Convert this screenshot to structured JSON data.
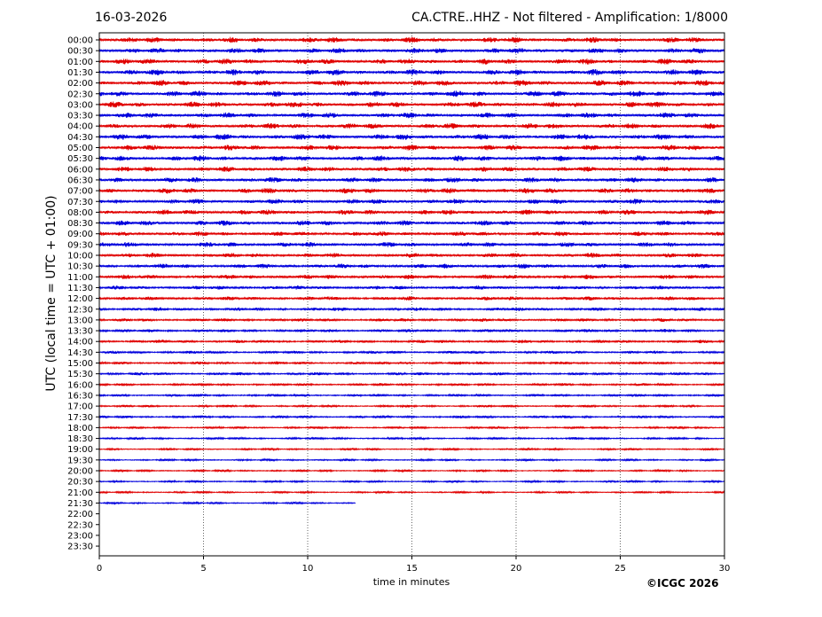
{
  "header": {
    "date": "16-03-2026",
    "title": "CA.CTRE..HHZ - Not filtered - Amplification: 1/8000"
  },
  "footer": {
    "copyright": "©ICGC 2026"
  },
  "colors": {
    "trace_odd": "#e00000",
    "trace_even": "#0000dd",
    "axes": "#000000",
    "grid": "#000000"
  },
  "chart_data": {
    "type": "line",
    "title": "CA.CTRE..HHZ - Not filtered - Amplification: 1/8000",
    "xlabel": "time in minutes",
    "ylabel": "UTC (local time = UTC + 01:00)",
    "xlim": [
      0,
      30
    ],
    "xticks": [
      "0",
      "5",
      "10",
      "15",
      "20",
      "25",
      "30"
    ],
    "grid": "vertical dotted lines at x ticks",
    "row_labels": [
      "00:00",
      "00:30",
      "01:00",
      "01:30",
      "02:00",
      "02:30",
      "03:00",
      "03:30",
      "04:00",
      "04:30",
      "05:00",
      "05:30",
      "06:00",
      "06:30",
      "07:00",
      "07:30",
      "08:00",
      "08:30",
      "09:00",
      "09:30",
      "10:00",
      "10:30",
      "11:00",
      "11:30",
      "12:00",
      "12:30",
      "13:00",
      "13:30",
      "14:00",
      "14:30",
      "15:00",
      "15:30",
      "16:00",
      "16:30",
      "17:00",
      "17:30",
      "18:00",
      "18:30",
      "19:00",
      "19:30",
      "20:00",
      "20:30",
      "21:00",
      "21:30",
      "22:00",
      "22:30",
      "23:00",
      "23:30"
    ],
    "series": [
      {
        "row": "00:00",
        "color": "red",
        "duration_min": 30,
        "level": 0.9
      },
      {
        "row": "00:30",
        "color": "blue",
        "duration_min": 30,
        "level": 0.9
      },
      {
        "row": "01:00",
        "color": "red",
        "duration_min": 30,
        "level": 0.95
      },
      {
        "row": "01:30",
        "color": "blue",
        "duration_min": 30,
        "level": 0.95
      },
      {
        "row": "02:00",
        "color": "red",
        "duration_min": 30,
        "level": 0.95
      },
      {
        "row": "02:30",
        "color": "blue",
        "duration_min": 30,
        "level": 0.95
      },
      {
        "row": "03:00",
        "color": "red",
        "duration_min": 30,
        "level": 0.95
      },
      {
        "row": "03:30",
        "color": "blue",
        "duration_min": 30,
        "level": 0.9
      },
      {
        "row": "04:00",
        "color": "red",
        "duration_min": 30,
        "level": 0.9
      },
      {
        "row": "04:30",
        "color": "blue",
        "duration_min": 30,
        "level": 0.95
      },
      {
        "row": "05:00",
        "color": "red",
        "duration_min": 30,
        "level": 0.9
      },
      {
        "row": "05:30",
        "color": "blue",
        "duration_min": 30,
        "level": 0.9
      },
      {
        "row": "06:00",
        "color": "red",
        "duration_min": 30,
        "level": 0.85
      },
      {
        "row": "06:30",
        "color": "blue",
        "duration_min": 30,
        "level": 0.85
      },
      {
        "row": "07:00",
        "color": "red",
        "duration_min": 30,
        "level": 0.9
      },
      {
        "row": "07:30",
        "color": "blue",
        "duration_min": 30,
        "level": 0.8
      },
      {
        "row": "08:00",
        "color": "red",
        "duration_min": 30,
        "level": 0.85
      },
      {
        "row": "08:30",
        "color": "blue",
        "duration_min": 30,
        "level": 0.85
      },
      {
        "row": "09:00",
        "color": "red",
        "duration_min": 30,
        "level": 0.75
      },
      {
        "row": "09:30",
        "color": "blue",
        "duration_min": 30,
        "level": 0.8
      },
      {
        "row": "10:00",
        "color": "red",
        "duration_min": 30,
        "level": 0.75
      },
      {
        "row": "10:30",
        "color": "blue",
        "duration_min": 30,
        "level": 0.75
      },
      {
        "row": "11:00",
        "color": "red",
        "duration_min": 30,
        "level": 0.75
      },
      {
        "row": "11:30",
        "color": "blue",
        "duration_min": 30,
        "level": 0.65
      },
      {
        "row": "12:00",
        "color": "red",
        "duration_min": 30,
        "level": 0.65
      },
      {
        "row": "12:30",
        "color": "blue",
        "duration_min": 30,
        "level": 0.6
      },
      {
        "row": "13:00",
        "color": "red",
        "duration_min": 30,
        "level": 0.55
      },
      {
        "row": "13:30",
        "color": "blue",
        "duration_min": 30,
        "level": 0.55
      },
      {
        "row": "14:00",
        "color": "red",
        "duration_min": 30,
        "level": 0.55
      },
      {
        "row": "14:30",
        "color": "blue",
        "duration_min": 30,
        "level": 0.5
      },
      {
        "row": "15:00",
        "color": "red",
        "duration_min": 30,
        "level": 0.5
      },
      {
        "row": "15:30",
        "color": "blue",
        "duration_min": 30,
        "level": 0.5
      },
      {
        "row": "16:00",
        "color": "red",
        "duration_min": 30,
        "level": 0.45
      },
      {
        "row": "16:30",
        "color": "blue",
        "duration_min": 30,
        "level": 0.45
      },
      {
        "row": "17:00",
        "color": "red",
        "duration_min": 30,
        "level": 0.4
      },
      {
        "row": "17:30",
        "color": "blue",
        "duration_min": 30,
        "level": 0.45
      },
      {
        "row": "18:00",
        "color": "red",
        "duration_min": 30,
        "level": 0.4
      },
      {
        "row": "18:30",
        "color": "blue",
        "duration_min": 30,
        "level": 0.4
      },
      {
        "row": "19:00",
        "color": "red",
        "duration_min": 30,
        "level": 0.35
      },
      {
        "row": "19:30",
        "color": "blue",
        "duration_min": 30,
        "level": 0.35
      },
      {
        "row": "20:00",
        "color": "red",
        "duration_min": 30,
        "level": 0.35
      },
      {
        "row": "20:30",
        "color": "blue",
        "duration_min": 30,
        "level": 0.35
      },
      {
        "row": "21:00",
        "color": "red",
        "duration_min": 30,
        "level": 0.35
      },
      {
        "row": "21:30",
        "color": "blue",
        "duration_min": 12.3,
        "level": 0.35
      }
    ]
  }
}
